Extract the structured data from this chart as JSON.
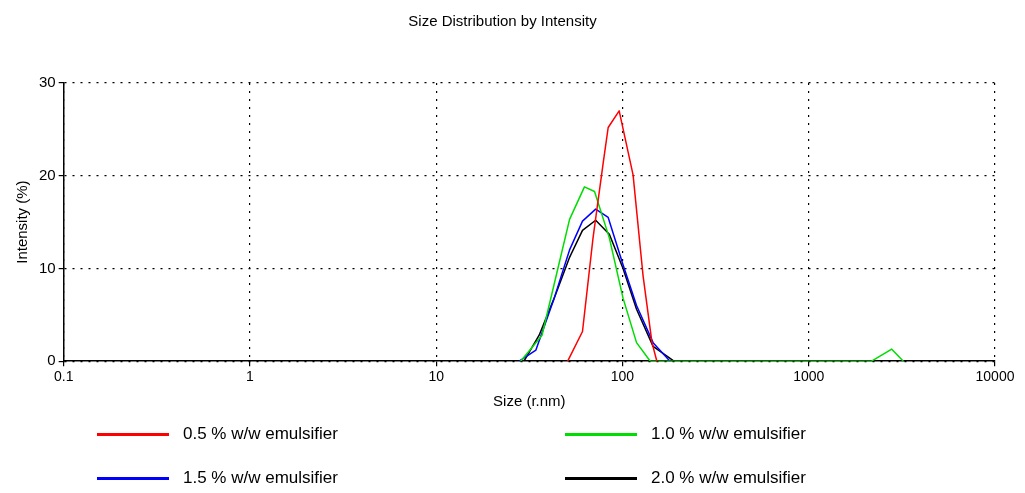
{
  "chart_data": {
    "type": "line",
    "title": "Size Distribution by Intensity",
    "xlabel": "Size (r.nm)",
    "ylabel": "Intensity (%)",
    "log": "x",
    "xlim": [
      0.1,
      10000
    ],
    "xticks": [
      0.1,
      1,
      10,
      100,
      1000,
      10000
    ],
    "ylim": [
      0,
      30
    ],
    "yticks": [
      0,
      10,
      20,
      30
    ],
    "grid": true,
    "legend": "bottom",
    "marker": "none",
    "line_style": "solid",
    "series": [
      {
        "name": "0.5 % w/w emulsifier",
        "color": "#ff0000",
        "x": [
          50.8,
          61,
          69.5,
          78.7,
          83.8,
          96,
          114,
          129,
          144,
          153
        ],
        "values": [
          0,
          3.2,
          13.3,
          21.3,
          25.2,
          27.0,
          20.1,
          9.2,
          2.0,
          0
        ]
      },
      {
        "name": "1.0 % w/w emulsifier",
        "color": "#00dd00",
        "x": [
          28.4,
          37,
          45,
          52,
          62.5,
          70.8,
          85,
          100.7,
          119,
          141,
          2175,
          2790,
          3220
        ],
        "values": [
          0,
          2.8,
          10,
          15.3,
          18.8,
          18.3,
          13.3,
          6.8,
          2.0,
          0,
          0,
          1.3,
          0
        ]
      },
      {
        "name": "1.5 % w/w emulsifier",
        "color": "#0000ff",
        "x": [
          27.9,
          34.3,
          43,
          52,
          61,
          71.8,
          83.8,
          100.7,
          119,
          146,
          180
        ],
        "values": [
          0,
          1.2,
          6.8,
          12.0,
          15.1,
          16.4,
          15.5,
          10.4,
          6.0,
          2.0,
          0
        ]
      },
      {
        "name": "2.0 % w/w emulsifier",
        "color": "#000000",
        "x": [
          29.6,
          35.7,
          43,
          52,
          61,
          71.8,
          85,
          100.7,
          119,
          146,
          189
        ],
        "values": [
          0,
          2.8,
          6.8,
          11.2,
          14.1,
          15.2,
          13.7,
          10.0,
          5.6,
          1.6,
          0
        ]
      }
    ]
  }
}
